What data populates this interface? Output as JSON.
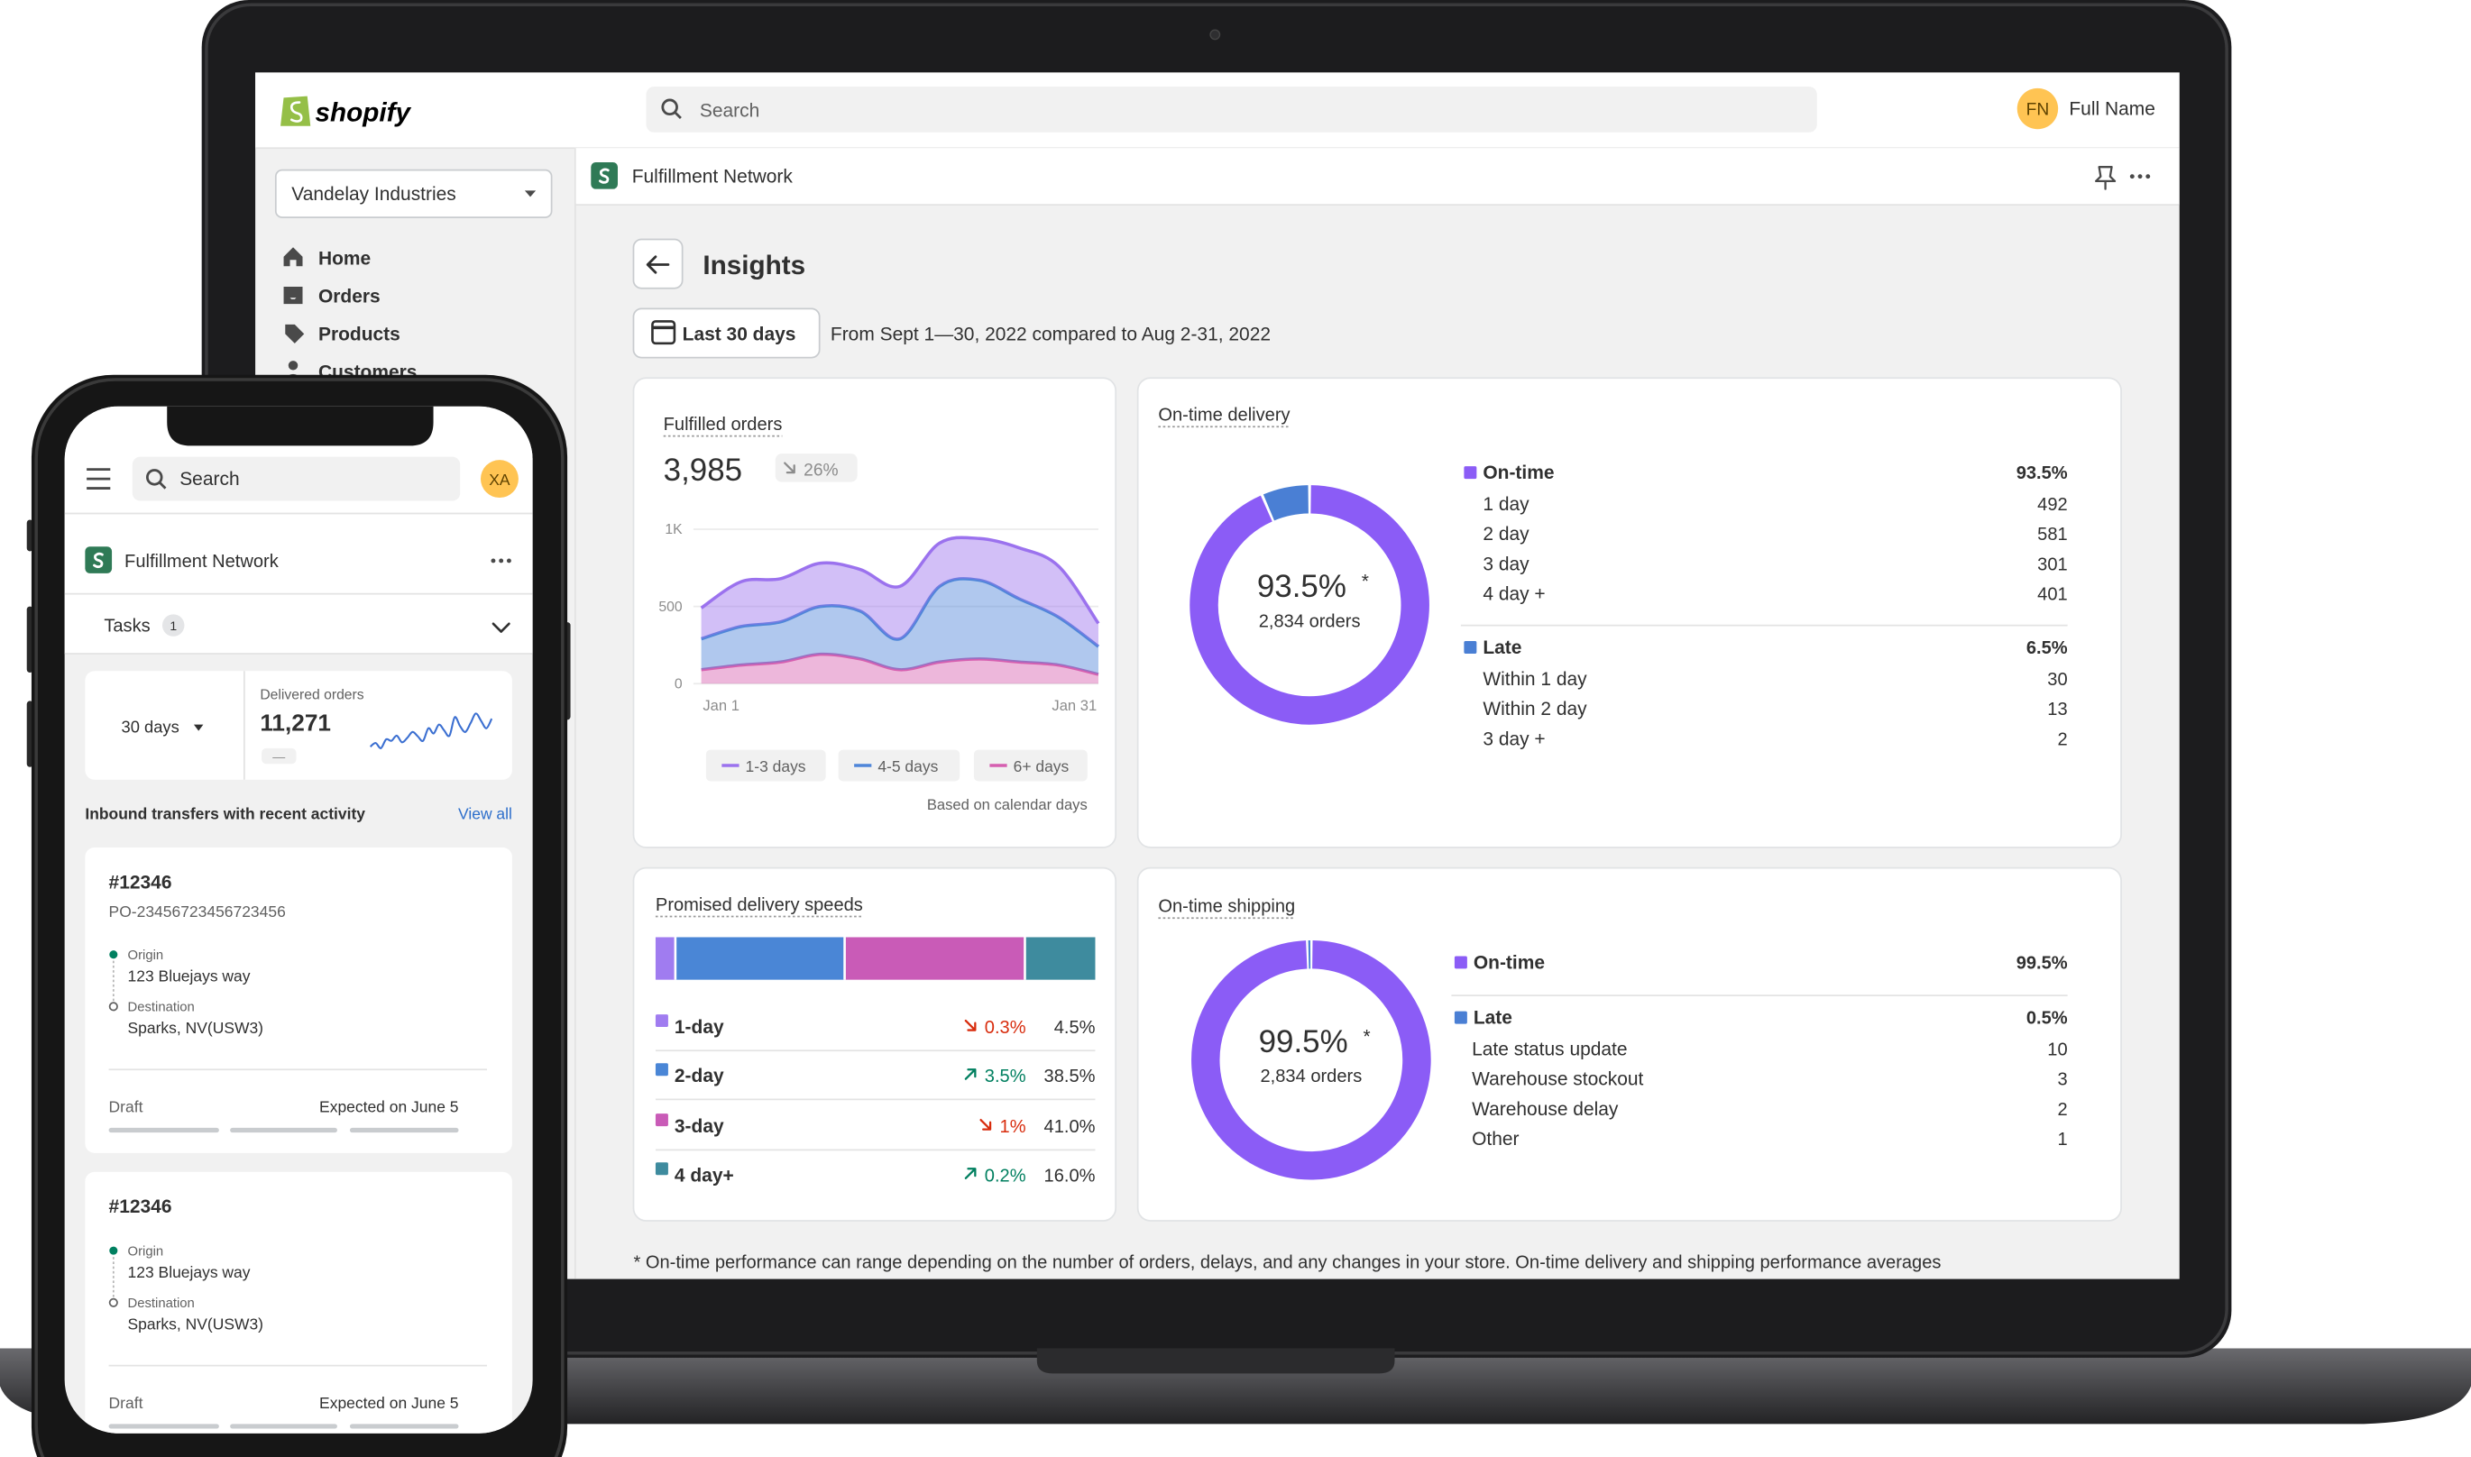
{
  "laptop": {
    "logo": "shopify",
    "search": "Search",
    "user": {
      "initials": "FN",
      "name": "Full Name"
    },
    "store": "Vandelay Industries",
    "nav": [
      "Home",
      "Orders",
      "Products",
      "Customers"
    ],
    "app_name": "Fulfillment Network",
    "title": "Insights",
    "range_button": "Last 30 days",
    "range_text": "From Sept 1—30, 2022 compared to Aug 2-31, 2022",
    "note_mark": "*",
    "fulfilled_orders": {
      "title": "Fulfilled orders",
      "total": "3,985",
      "change": "26%",
      "note": "Based on calendar days",
      "chart_data": {
        "type": "area",
        "stacked": true,
        "categories": [
          "Jan 1",
          null,
          null,
          null,
          null,
          null,
          null,
          null,
          null,
          null,
          "Jan 31"
        ],
        "series": [
          {
            "name": "1-3 days",
            "color": "#9b72ee",
            "values": [
              200,
              290,
              280,
              280,
              270,
              340,
              280,
              270,
              330,
              330,
              150
            ]
          },
          {
            "name": "4-5 days",
            "color": "#4f86d9",
            "values": [
              200,
              250,
              260,
              310,
              310,
              200,
              490,
              510,
              410,
              310,
              180
            ]
          },
          {
            "name": "6+ days",
            "color": "#d65fb0",
            "values": [
              90,
              120,
              140,
              190,
              160,
              90,
              140,
              160,
              140,
              120,
              60
            ]
          }
        ],
        "ylim": [
          0,
          1000
        ],
        "yticks": [
          0,
          500,
          {
            "value": 1000,
            "label": "1K"
          }
        ],
        "grid": true
      }
    },
    "on_time_delivery": {
      "title": "On-time delivery",
      "orders": "2,834 orders",
      "groups": [
        {
          "name": "On-time",
          "value": 93.5,
          "label": "93.5%",
          "color": "#8b5cf6",
          "rows": [
            {
              "name": "1 day",
              "value": 492
            },
            {
              "name": "2 day",
              "value": 581
            },
            {
              "name": "3 day",
              "value": 301
            },
            {
              "name": "4 day +",
              "value": 401
            }
          ]
        },
        {
          "name": "Late",
          "value": 6.5,
          "label": "6.5%",
          "color": "#4a7fd4",
          "rows": [
            {
              "name": "Within 1 day",
              "value": 30
            },
            {
              "name": "Within 2 day",
              "value": 13
            },
            {
              "name": "3 day +",
              "value": 2
            }
          ]
        }
      ]
    },
    "promised_delivery": {
      "title": "Promised delivery speeds",
      "changes": [
        "0.3%",
        "3.5%",
        "1%",
        "0.2%"
      ],
      "directions": [
        "down",
        "up",
        "down",
        "up"
      ],
      "chart_data": {
        "type": "bar",
        "orientation": "horizontal",
        "stacked": true,
        "categories": [
          "1-day",
          "2-day",
          "3-day",
          "4 day+"
        ],
        "values": [
          4.5,
          38.5,
          41,
          16
        ],
        "value_labels": [
          "4.5%",
          "38.5%",
          "41.0%",
          "16.0%"
        ],
        "colors": [
          "#a07cf0",
          "#4a86d6",
          "#c95bb7",
          "#3e8b9e"
        ]
      }
    },
    "on_time_shipping": {
      "title": "On-time shipping",
      "orders": "2,834 orders",
      "groups": [
        {
          "name": "On-time",
          "value": 99.5,
          "label": "99.5%",
          "color": "#8b5cf6",
          "rows": []
        },
        {
          "name": "Late",
          "value": 0.5,
          "label": "0.5%",
          "color": "#4a7fd4",
          "rows": [
            {
              "name": "Late status update",
              "value": 10
            },
            {
              "name": "Warehouse stockout",
              "value": 3
            },
            {
              "name": "Warehouse delay",
              "value": 2
            },
            {
              "name": "Other",
              "value": 1
            }
          ]
        }
      ]
    },
    "footnote": "* On-time performance can range depending on the number of orders, delays, and any changes in your store. On-time delivery and shipping performance averages"
  },
  "phone": {
    "search": "Search",
    "initials": "XA",
    "app_name": "Fulfillment Network",
    "tasks": "Tasks",
    "task_count": 1,
    "range": "30 days",
    "delivered": {
      "label": "Delivered orders",
      "total": "11,271",
      "change": "—",
      "chart_data": {
        "type": "line",
        "color": "#3b6fd1",
        "values": [
          30,
          35,
          28,
          40,
          38,
          45,
          36,
          42,
          50,
          44,
          38,
          55,
          48,
          60,
          52,
          45,
          70,
          58,
          50,
          62,
          75,
          65,
          55,
          68
        ]
      }
    },
    "section_title": "Inbound transfers with recent activity",
    "view_all": "View all",
    "transfers": [
      {
        "id": "#12346",
        "po": "PO-23456723456723456",
        "origin_label": "Origin",
        "origin": "123 Bluejays way",
        "destination_label": "Destination",
        "destination": "Sparks, NV(USW3)",
        "status": "Draft",
        "expected": "Expected on June 5"
      },
      {
        "id": "#12346",
        "origin_label": "Origin",
        "origin": "123 Bluejays way",
        "destination_label": "Destination",
        "destination": "Sparks, NV(USW3)",
        "status": "Draft",
        "expected": "Expected on June 5"
      }
    ]
  }
}
